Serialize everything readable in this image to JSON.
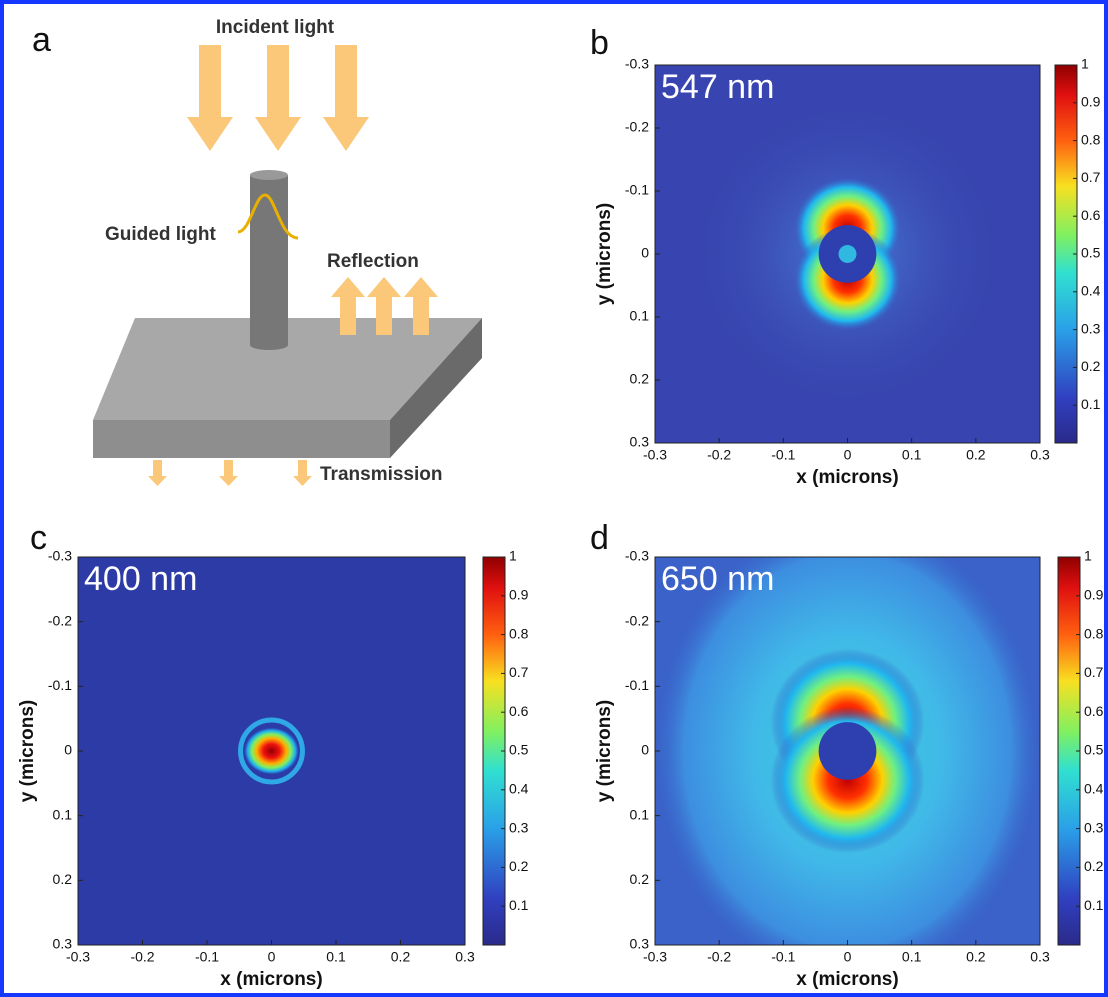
{
  "panels": [
    {
      "label": "a",
      "incident": "Incident light",
      "guided": "Guided light",
      "reflection": "Reflection",
      "transmission": "Transmission"
    },
    {
      "label": "b",
      "wavelength": "547 nm",
      "xlabel": "x (microns)",
      "ylabel": "y (microns)",
      "xlim": [
        -0.3,
        0.3
      ],
      "ylim": [
        -0.3,
        0.3
      ],
      "clim": [
        0,
        1
      ],
      "xticks": [
        -0.3,
        -0.2,
        -0.1,
        0,
        0.1,
        0.2,
        0.3
      ],
      "yticks": [
        -0.3,
        -0.2,
        -0.1,
        0,
        0.1,
        0.2,
        0.3
      ],
      "cticks": [
        0.1,
        0.2,
        0.3,
        0.4,
        0.5,
        0.6,
        0.7,
        0.8,
        0.9,
        1
      ]
    },
    {
      "label": "c",
      "wavelength": "400 nm",
      "xlabel": "x (microns)",
      "ylabel": "y (microns)",
      "xlim": [
        -0.3,
        0.3
      ],
      "ylim": [
        -0.3,
        0.3
      ],
      "clim": [
        0,
        1
      ],
      "xticks": [
        -0.3,
        -0.2,
        -0.1,
        0,
        0.1,
        0.2,
        0.3
      ],
      "yticks": [
        -0.3,
        -0.2,
        -0.1,
        0,
        0.1,
        0.2,
        0.3
      ],
      "cticks": [
        0.1,
        0.2,
        0.3,
        0.4,
        0.5,
        0.6,
        0.7,
        0.8,
        0.9,
        1
      ]
    },
    {
      "label": "d",
      "wavelength": "650 nm",
      "xlabel": "x (microns)",
      "ylabel": "y (microns)",
      "xlim": [
        -0.3,
        0.3
      ],
      "ylim": [
        -0.3,
        0.3
      ],
      "clim": [
        0,
        1
      ],
      "xticks": [
        -0.3,
        -0.2,
        -0.1,
        0,
        0.1,
        0.2,
        0.3
      ],
      "yticks": [
        -0.3,
        -0.2,
        -0.1,
        0,
        0.1,
        0.2,
        0.3
      ],
      "cticks": [
        0.1,
        0.2,
        0.3,
        0.4,
        0.5,
        0.6,
        0.7,
        0.8,
        0.9,
        1
      ]
    }
  ]
}
